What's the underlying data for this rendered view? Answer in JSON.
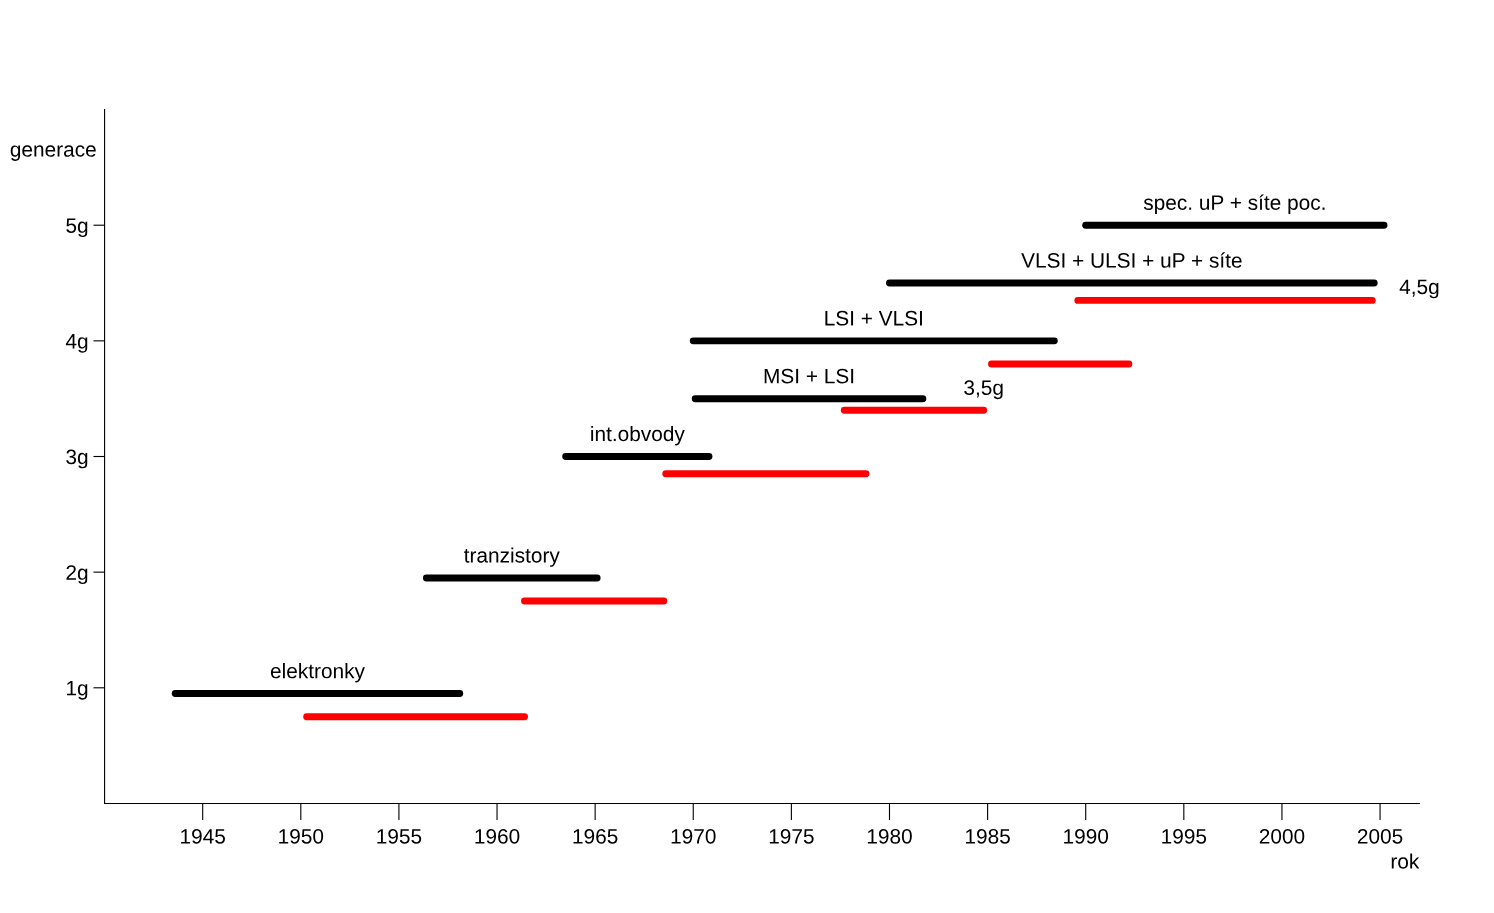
{
  "chart_data": {
    "type": "line",
    "xlabel": "rok",
    "ylabel": "generace",
    "xlim": [
      1940,
      2007
    ],
    "ylim": [
      0,
      6
    ],
    "xticks": [
      1945,
      1950,
      1955,
      1960,
      1965,
      1970,
      1975,
      1980,
      1985,
      1990,
      1995,
      2000,
      2005
    ],
    "yticks": [
      {
        "value": 1,
        "label": "1g"
      },
      {
        "value": 2,
        "label": "2g"
      },
      {
        "value": 3,
        "label": "3g"
      },
      {
        "value": 4,
        "label": "4g"
      },
      {
        "value": 5,
        "label": "5g"
      }
    ],
    "grid": false,
    "legend": false,
    "marker": "none",
    "line_style": "solid",
    "series": [
      {
        "color": "#000000",
        "x": [
          1943.6,
          1958.1
        ],
        "values": [
          0.95,
          0.95
        ]
      },
      {
        "color": "#ff0000",
        "x": [
          1950.3,
          1961.4
        ],
        "values": [
          0.75,
          0.75
        ]
      },
      {
        "color": "#000000",
        "x": [
          1956.4,
          1965.1
        ],
        "values": [
          1.95,
          1.95
        ]
      },
      {
        "color": "#ff0000",
        "x": [
          1961.4,
          1968.5
        ],
        "values": [
          1.75,
          1.75
        ]
      },
      {
        "color": "#000000",
        "x": [
          1963.5,
          1970.8
        ],
        "values": [
          3.0,
          3.0
        ]
      },
      {
        "color": "#ff0000",
        "x": [
          1968.6,
          1978.8
        ],
        "values": [
          2.85,
          2.85
        ]
      },
      {
        "color": "#000000",
        "x": [
          1970.1,
          1981.7
        ],
        "values": [
          3.5,
          3.5
        ]
      },
      {
        "color": "#ff0000",
        "x": [
          1977.7,
          1984.8
        ],
        "values": [
          3.4,
          3.4
        ]
      },
      {
        "color": "#000000",
        "x": [
          1970.0,
          1988.4
        ],
        "values": [
          4.0,
          4.0
        ]
      },
      {
        "color": "#ff0000",
        "x": [
          1985.2,
          1992.2
        ],
        "values": [
          3.8,
          3.8
        ]
      },
      {
        "color": "#000000",
        "x": [
          1980.0,
          2004.7
        ],
        "values": [
          4.5,
          4.5
        ]
      },
      {
        "color": "#ff0000",
        "x": [
          1989.6,
          2004.6
        ],
        "values": [
          4.35,
          4.35
        ]
      },
      {
        "color": "#000000",
        "x": [
          1990.0,
          2005.2
        ],
        "values": [
          5.0,
          5.0
        ]
      }
    ],
    "annotations": [
      {
        "text": "elektronky",
        "x": 1950.85,
        "y": 0.95
      },
      {
        "text": "tranzistory",
        "x": 1960.75,
        "y": 1.95
      },
      {
        "text": "int.obvody",
        "x": 1967.15,
        "y": 3.0
      },
      {
        "text": "MSI + LSI",
        "x": 1975.9,
        "y": 3.5
      },
      {
        "text": "3,5g",
        "x": 1984.8,
        "y": 3.4
      },
      {
        "text": "LSI + VLSI",
        "x": 1979.2,
        "y": 4.0
      },
      {
        "text": "VLSI + ULSI + uP + síte",
        "x": 1992.35,
        "y": 4.5
      },
      {
        "text": "4,5g",
        "x": 2004.7,
        "y": 4.5
      },
      {
        "text": "spec. uP + síte poc.",
        "x": 1997.6,
        "y": 5.0
      }
    ]
  }
}
